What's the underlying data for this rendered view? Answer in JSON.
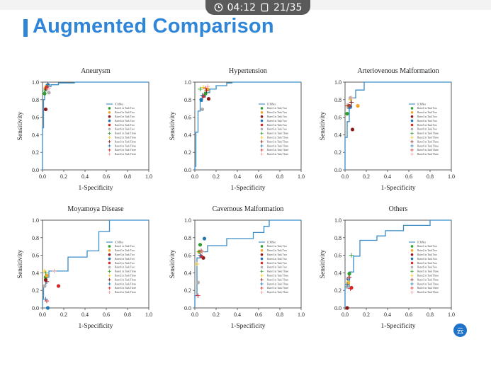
{
  "overlay": {
    "time": "04:12",
    "page": "21/35"
  },
  "slide": {
    "title": "Augmented Comparison"
  },
  "legend_labels": [
    "ICMNet",
    "Rater1 in Task Two",
    "Rater2 in Task Two",
    "Rater3 in Task Two",
    "Rater4 in Task Two",
    "Rater5 in Task Two",
    "Rater6 in Task Two",
    "Rater1 in Task Three",
    "Rater2 in Task Three",
    "Rater3 in Task Three",
    "Rater4 in Task Three",
    "Rater5 in Task Three",
    "Rater6 in Task Three"
  ],
  "rater_colors": [
    "#2ca02c",
    "#f5a623",
    "#8b1a1a",
    "#1f77b4",
    "#d62728",
    "#b0b0b0"
  ],
  "cross_colors": [
    "#2ca02c",
    "#f5c518",
    "#8b1a1a",
    "#1f77b4",
    "#d62728",
    "#f0a0a0"
  ],
  "roc_color": "#3a8dc7",
  "badge_text": "云",
  "chart_data": [
    {
      "type": "line",
      "title": "Aneurysm",
      "xlabel": "1-Specificity",
      "ylabel": "Sensitivity",
      "xlim": [
        0,
        1
      ],
      "ylim": [
        0,
        1
      ],
      "x_ticks": [
        "0.0",
        "0.2",
        "0.4",
        "0.6",
        "0.8",
        "1.0"
      ],
      "y_ticks": [
        "0.0",
        "0.2",
        "0.4",
        "0.6",
        "0.8",
        "1.0"
      ],
      "roc": [
        [
          0,
          0
        ],
        [
          0,
          0.48
        ],
        [
          0.01,
          0.48
        ],
        [
          0.01,
          0.8
        ],
        [
          0.02,
          0.8
        ],
        [
          0.02,
          0.9
        ],
        [
          0.04,
          0.9
        ],
        [
          0.04,
          0.95
        ],
        [
          0.08,
          0.95
        ],
        [
          0.08,
          0.97
        ],
        [
          0.15,
          0.97
        ],
        [
          0.15,
          0.99
        ],
        [
          0.3,
          0.99
        ],
        [
          0.3,
          1.0
        ],
        [
          1.0,
          1.0
        ]
      ],
      "raters_task_two": [
        [
          0.02,
          0.87
        ],
        [
          0.03,
          0.93
        ],
        [
          0.03,
          0.69
        ],
        [
          0.05,
          0.97
        ],
        [
          0.04,
          0.95
        ],
        [
          0.06,
          0.88
        ]
      ],
      "raters_task_three": [
        [
          0.02,
          0.9
        ],
        [
          0.04,
          0.96
        ],
        [
          0.03,
          0.92
        ],
        [
          0.05,
          0.97
        ],
        [
          0.04,
          0.94
        ],
        [
          0.06,
          0.93
        ]
      ]
    },
    {
      "type": "line",
      "title": "Hypertension",
      "xlabel": "1-Specificity",
      "ylabel": "Sensitivity",
      "xlim": [
        0,
        1
      ],
      "ylim": [
        0,
        1
      ],
      "x_ticks": [
        "0.0",
        "0.2",
        "0.4",
        "0.6",
        "0.8",
        "1.0"
      ],
      "y_ticks": [
        "0.0",
        "0.2",
        "0.4",
        "0.6",
        "0.8",
        "1.0"
      ],
      "roc": [
        [
          0,
          0
        ],
        [
          0,
          0.04
        ],
        [
          0.01,
          0.04
        ],
        [
          0.01,
          0.43
        ],
        [
          0.03,
          0.43
        ],
        [
          0.03,
          0.67
        ],
        [
          0.05,
          0.67
        ],
        [
          0.05,
          0.78
        ],
        [
          0.07,
          0.78
        ],
        [
          0.07,
          0.83
        ],
        [
          0.1,
          0.83
        ],
        [
          0.1,
          0.88
        ],
        [
          0.14,
          0.88
        ],
        [
          0.14,
          0.92
        ],
        [
          0.2,
          0.92
        ],
        [
          0.2,
          0.96
        ],
        [
          0.3,
          0.96
        ],
        [
          0.3,
          0.99
        ],
        [
          0.35,
          0.99
        ],
        [
          0.35,
          1.0
        ],
        [
          1.0,
          1.0
        ]
      ],
      "raters_task_two": [
        [
          0.1,
          0.87
        ],
        [
          0.12,
          0.92
        ],
        [
          0.13,
          0.81
        ],
        [
          0.06,
          0.8
        ],
        [
          0.08,
          0.84
        ],
        [
          0.07,
          0.69
        ]
      ],
      "raters_task_three": [
        [
          0.05,
          0.92
        ],
        [
          0.08,
          0.94
        ],
        [
          0.11,
          0.9
        ],
        [
          0.07,
          0.85
        ],
        [
          0.1,
          0.93
        ],
        [
          0.12,
          0.95
        ]
      ]
    },
    {
      "type": "line",
      "title": "Arteriovenous Malformation",
      "xlabel": "1-Specificity",
      "ylabel": "Sensitivity",
      "xlim": [
        0,
        1
      ],
      "ylim": [
        0,
        1
      ],
      "x_ticks": [
        "0.0",
        "0.2",
        "0.4",
        "0.6",
        "0.8",
        "1.0"
      ],
      "y_ticks": [
        "0.0",
        "0.2",
        "0.4",
        "0.6",
        "0.8",
        "1.0"
      ],
      "roc": [
        [
          0,
          0
        ],
        [
          0,
          0.37
        ],
        [
          0.02,
          0.37
        ],
        [
          0.02,
          0.55
        ],
        [
          0.04,
          0.55
        ],
        [
          0.04,
          0.73
        ],
        [
          0.06,
          0.73
        ],
        [
          0.06,
          0.82
        ],
        [
          0.1,
          0.82
        ],
        [
          0.1,
          0.91
        ],
        [
          0.18,
          0.91
        ],
        [
          0.18,
          1.0
        ],
        [
          1.0,
          1.0
        ]
      ],
      "raters_task_two": [
        [
          0.02,
          0.64
        ],
        [
          0.12,
          0.73
        ],
        [
          0.07,
          0.46
        ],
        [
          0.05,
          0.72
        ],
        [
          0.04,
          0.73
        ],
        [
          0.05,
          0.82
        ]
      ],
      "raters_task_three": [
        [
          0.03,
          0.73
        ],
        [
          0.05,
          0.8
        ],
        [
          0.06,
          0.77
        ],
        [
          0.04,
          0.7
        ],
        [
          0.02,
          0.73
        ],
        [
          0.06,
          0.82
        ]
      ]
    },
    {
      "type": "line",
      "title": "Moyamoya Disease",
      "xlabel": "1-Specificity",
      "ylabel": "Sensitivity",
      "xlim": [
        0,
        1
      ],
      "ylim": [
        0,
        1
      ],
      "x_ticks": [
        "0.0",
        "0.2",
        "0.4",
        "0.6",
        "0.8",
        "1.0"
      ],
      "y_ticks": [
        "0.0",
        "0.2",
        "0.4",
        "0.6",
        "0.8",
        "1.0"
      ],
      "roc": [
        [
          0,
          0
        ],
        [
          0,
          0.1
        ],
        [
          0.01,
          0.1
        ],
        [
          0.01,
          0.25
        ],
        [
          0.03,
          0.25
        ],
        [
          0.03,
          0.35
        ],
        [
          0.06,
          0.35
        ],
        [
          0.06,
          0.42
        ],
        [
          0.24,
          0.42
        ],
        [
          0.24,
          0.58
        ],
        [
          0.42,
          0.58
        ],
        [
          0.42,
          0.65
        ],
        [
          0.53,
          0.65
        ],
        [
          0.53,
          0.87
        ],
        [
          0.63,
          0.87
        ],
        [
          0.63,
          1.0
        ],
        [
          1.0,
          1.0
        ]
      ],
      "raters_task_two": [
        [
          0.03,
          0.35
        ],
        [
          0.04,
          0.37
        ],
        [
          0.03,
          0.32
        ],
        [
          0.05,
          0.0
        ],
        [
          0.15,
          0.25
        ],
        [
          0.02,
          0.25
        ]
      ],
      "raters_task_three": [
        [
          0.03,
          0.4
        ],
        [
          0.02,
          0.42
        ],
        [
          0.04,
          0.3
        ],
        [
          0.03,
          0.1
        ],
        [
          0.04,
          0.08
        ],
        [
          0.11,
          0.42
        ]
      ]
    },
    {
      "type": "line",
      "title": "Cavernous Malformation",
      "xlabel": "1-Specificity",
      "ylabel": "Sensitivity",
      "xlim": [
        0,
        1
      ],
      "ylim": [
        0,
        1
      ],
      "x_ticks": [
        "0.0",
        "0.2",
        "0.4",
        "0.6",
        "0.8",
        "1.0"
      ],
      "y_ticks": [
        "0.0",
        "0.2",
        "0.4",
        "0.6",
        "0.8",
        "1.0"
      ],
      "roc": [
        [
          0,
          0
        ],
        [
          0,
          0.14
        ],
        [
          0.02,
          0.14
        ],
        [
          0.02,
          0.57
        ],
        [
          0.05,
          0.57
        ],
        [
          0.05,
          0.64
        ],
        [
          0.12,
          0.64
        ],
        [
          0.12,
          0.71
        ],
        [
          0.3,
          0.71
        ],
        [
          0.3,
          0.79
        ],
        [
          0.55,
          0.79
        ],
        [
          0.55,
          0.86
        ],
        [
          0.65,
          0.86
        ],
        [
          0.65,
          0.93
        ],
        [
          0.7,
          0.93
        ],
        [
          0.7,
          1.0
        ],
        [
          1.0,
          1.0
        ]
      ],
      "raters_task_two": [
        [
          0.05,
          0.72
        ],
        [
          0.04,
          0.64
        ],
        [
          0.08,
          0.57
        ],
        [
          0.09,
          0.79
        ],
        [
          0.06,
          0.59
        ],
        [
          0.03,
          0.29
        ]
      ],
      "raters_task_three": [
        [
          0.04,
          0.64
        ],
        [
          0.02,
          0.5
        ],
        [
          0.06,
          0.65
        ],
        [
          0.05,
          0.6
        ],
        [
          0.03,
          0.14
        ],
        [
          0.07,
          0.64
        ]
      ]
    },
    {
      "type": "line",
      "title": "Others",
      "xlabel": "1-Specificity",
      "ylabel": "Sensitivity",
      "xlim": [
        0,
        1
      ],
      "ylim": [
        0,
        1
      ],
      "x_ticks": [
        "0.0",
        "0.2",
        "0.4",
        "0.6",
        "0.8",
        "1.0"
      ],
      "y_ticks": [
        "0.0",
        "0.2",
        "0.4",
        "0.6",
        "0.8",
        "1.0"
      ],
      "roc": [
        [
          0,
          0
        ],
        [
          0,
          0.24
        ],
        [
          0.04,
          0.24
        ],
        [
          0.04,
          0.41
        ],
        [
          0.08,
          0.41
        ],
        [
          0.08,
          0.59
        ],
        [
          0.14,
          0.59
        ],
        [
          0.14,
          0.77
        ],
        [
          0.3,
          0.77
        ],
        [
          0.3,
          0.82
        ],
        [
          0.38,
          0.82
        ],
        [
          0.38,
          0.88
        ],
        [
          0.55,
          0.88
        ],
        [
          0.55,
          0.94
        ],
        [
          0.8,
          0.94
        ],
        [
          0.8,
          1.0
        ],
        [
          0.9,
          1.0
        ],
        [
          1.0,
          1.0
        ]
      ],
      "raters_task_two": [
        [
          0.04,
          0.39
        ],
        [
          0.03,
          0.28
        ],
        [
          0.02,
          0.0
        ],
        [
          0.03,
          0.33
        ],
        [
          0.06,
          0.23
        ],
        [
          0.02,
          0.24
        ]
      ],
      "raters_task_three": [
        [
          0.06,
          0.6
        ],
        [
          0.03,
          0.3
        ],
        [
          0.04,
          0.35
        ],
        [
          0.02,
          0.27
        ],
        [
          0.05,
          0.22
        ],
        [
          0.03,
          0.34
        ]
      ]
    }
  ]
}
